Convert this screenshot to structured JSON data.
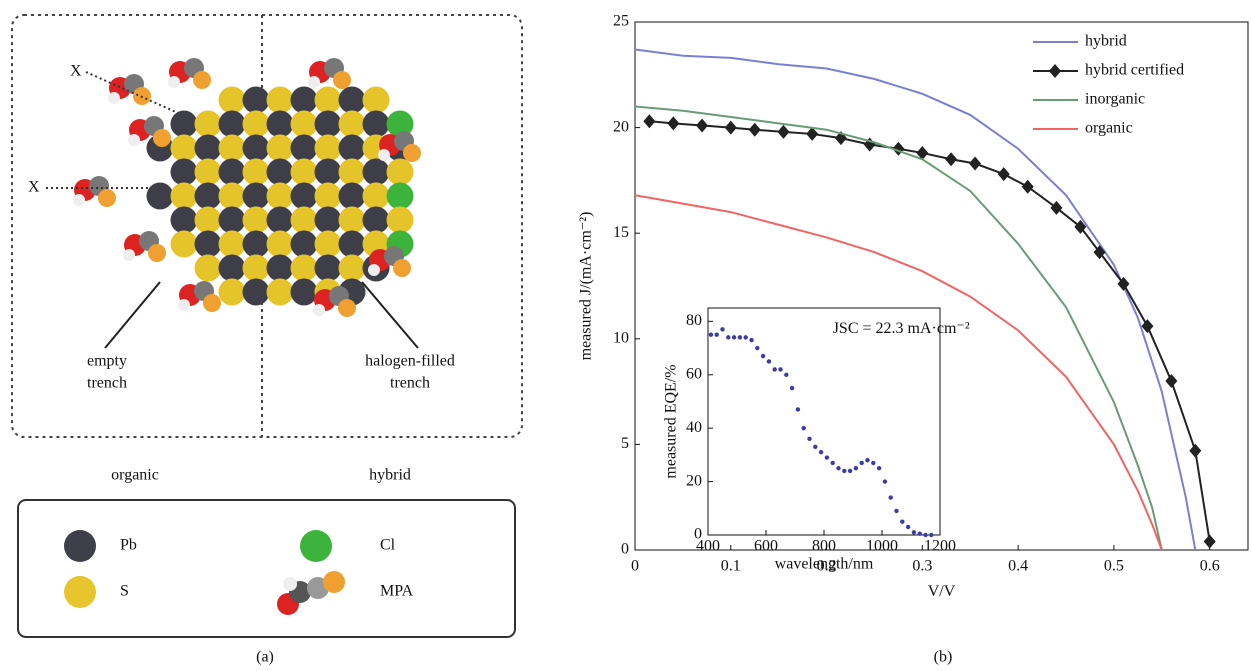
{
  "diagram": {
    "labels": {
      "x1": "X",
      "x2": "X",
      "empty_trench": [
        "empty",
        "trench"
      ],
      "halogen_trench": [
        "halogen-filled",
        "trench"
      ],
      "organic": "organic",
      "hybrid": "hybrid"
    },
    "legend": [
      {
        "label": "Pb"
      },
      {
        "label": "Cl"
      },
      {
        "label": "S"
      },
      {
        "label": "MPA"
      }
    ],
    "caption": "(a)"
  },
  "caption_b": "(b)",
  "chart_data": [
    {
      "type": "line",
      "xlabel": "V/V",
      "ylabel": "measured J/(mA·cm⁻²)",
      "xlim": [
        0,
        0.64
      ],
      "ylim": [
        0,
        25
      ],
      "xticks": [
        0,
        0.1,
        0.2,
        0.3,
        0.4,
        0.5,
        0.6
      ],
      "yticks": [
        0,
        5,
        10,
        15,
        20,
        25
      ],
      "legend": "upper right",
      "series": [
        {
          "name": "hybrid",
          "color": "#7b7fd3",
          "x": [
            0,
            0.05,
            0.1,
            0.15,
            0.2,
            0.25,
            0.3,
            0.35,
            0.4,
            0.45,
            0.5,
            0.525,
            0.55,
            0.575,
            0.585
          ],
          "values": [
            23.7,
            23.4,
            23.3,
            23.0,
            22.8,
            22.3,
            21.6,
            20.6,
            19.0,
            16.8,
            13.5,
            11.0,
            7.5,
            2.5,
            0
          ]
        },
        {
          "name": "hybrid certified",
          "color": "#222222",
          "marker": "diamond",
          "x": [
            0.015,
            0.04,
            0.07,
            0.1,
            0.125,
            0.155,
            0.185,
            0.215,
            0.245,
            0.275,
            0.3,
            0.33,
            0.355,
            0.385,
            0.41,
            0.44,
            0.465,
            0.485,
            0.51,
            0.535,
            0.56,
            0.585,
            0.6
          ],
          "values": [
            20.3,
            20.2,
            20.1,
            20.0,
            19.9,
            19.8,
            19.7,
            19.5,
            19.2,
            19.0,
            18.8,
            18.5,
            18.3,
            17.8,
            17.2,
            16.2,
            15.3,
            14.1,
            12.6,
            10.6,
            8.0,
            4.7,
            0.4
          ]
        },
        {
          "name": "inorganic",
          "color": "#6a9a78",
          "x": [
            0,
            0.05,
            0.1,
            0.15,
            0.2,
            0.25,
            0.3,
            0.35,
            0.4,
            0.45,
            0.5,
            0.525,
            0.54,
            0.55
          ],
          "values": [
            21.0,
            20.8,
            20.5,
            20.2,
            19.9,
            19.3,
            18.5,
            17.0,
            14.5,
            11.5,
            7.0,
            4.0,
            2.0,
            0
          ]
        },
        {
          "name": "organic",
          "color": "#f06464",
          "x": [
            0,
            0.05,
            0.1,
            0.15,
            0.2,
            0.25,
            0.3,
            0.35,
            0.4,
            0.45,
            0.5,
            0.525,
            0.54,
            0.55
          ],
          "values": [
            16.8,
            16.4,
            16.0,
            15.4,
            14.8,
            14.1,
            13.2,
            12.0,
            10.4,
            8.2,
            5.0,
            2.8,
            1.2,
            0
          ]
        }
      ]
    },
    {
      "type": "scatter",
      "xlabel": "wavelength/nm",
      "ylabel": "measured EQE/%",
      "annotation": "JSC = 22.3 mA·cm⁻²",
      "xlim": [
        400,
        1200
      ],
      "ylim": [
        0,
        85
      ],
      "xticks": [
        400,
        600,
        800,
        1000,
        1200
      ],
      "yticks": [
        0,
        20,
        40,
        60,
        80
      ],
      "series": [
        {
          "color": "#3a3aa8",
          "x": [
            410,
            430,
            450,
            470,
            490,
            510,
            530,
            550,
            570,
            590,
            610,
            630,
            650,
            670,
            690,
            710,
            730,
            750,
            770,
            790,
            810,
            830,
            850,
            870,
            890,
            910,
            930,
            950,
            970,
            990,
            1010,
            1030,
            1050,
            1070,
            1090,
            1110,
            1130,
            1150,
            1170
          ],
          "values": [
            75,
            75,
            77,
            74,
            74,
            74,
            74,
            73,
            70,
            67,
            65,
            62,
            62,
            60,
            55,
            47,
            40,
            36,
            33,
            31,
            29,
            27,
            25,
            24,
            24,
            25,
            27,
            28,
            27,
            25,
            20,
            14,
            9,
            5,
            3,
            1,
            0.5,
            0,
            0
          ]
        }
      ]
    }
  ]
}
